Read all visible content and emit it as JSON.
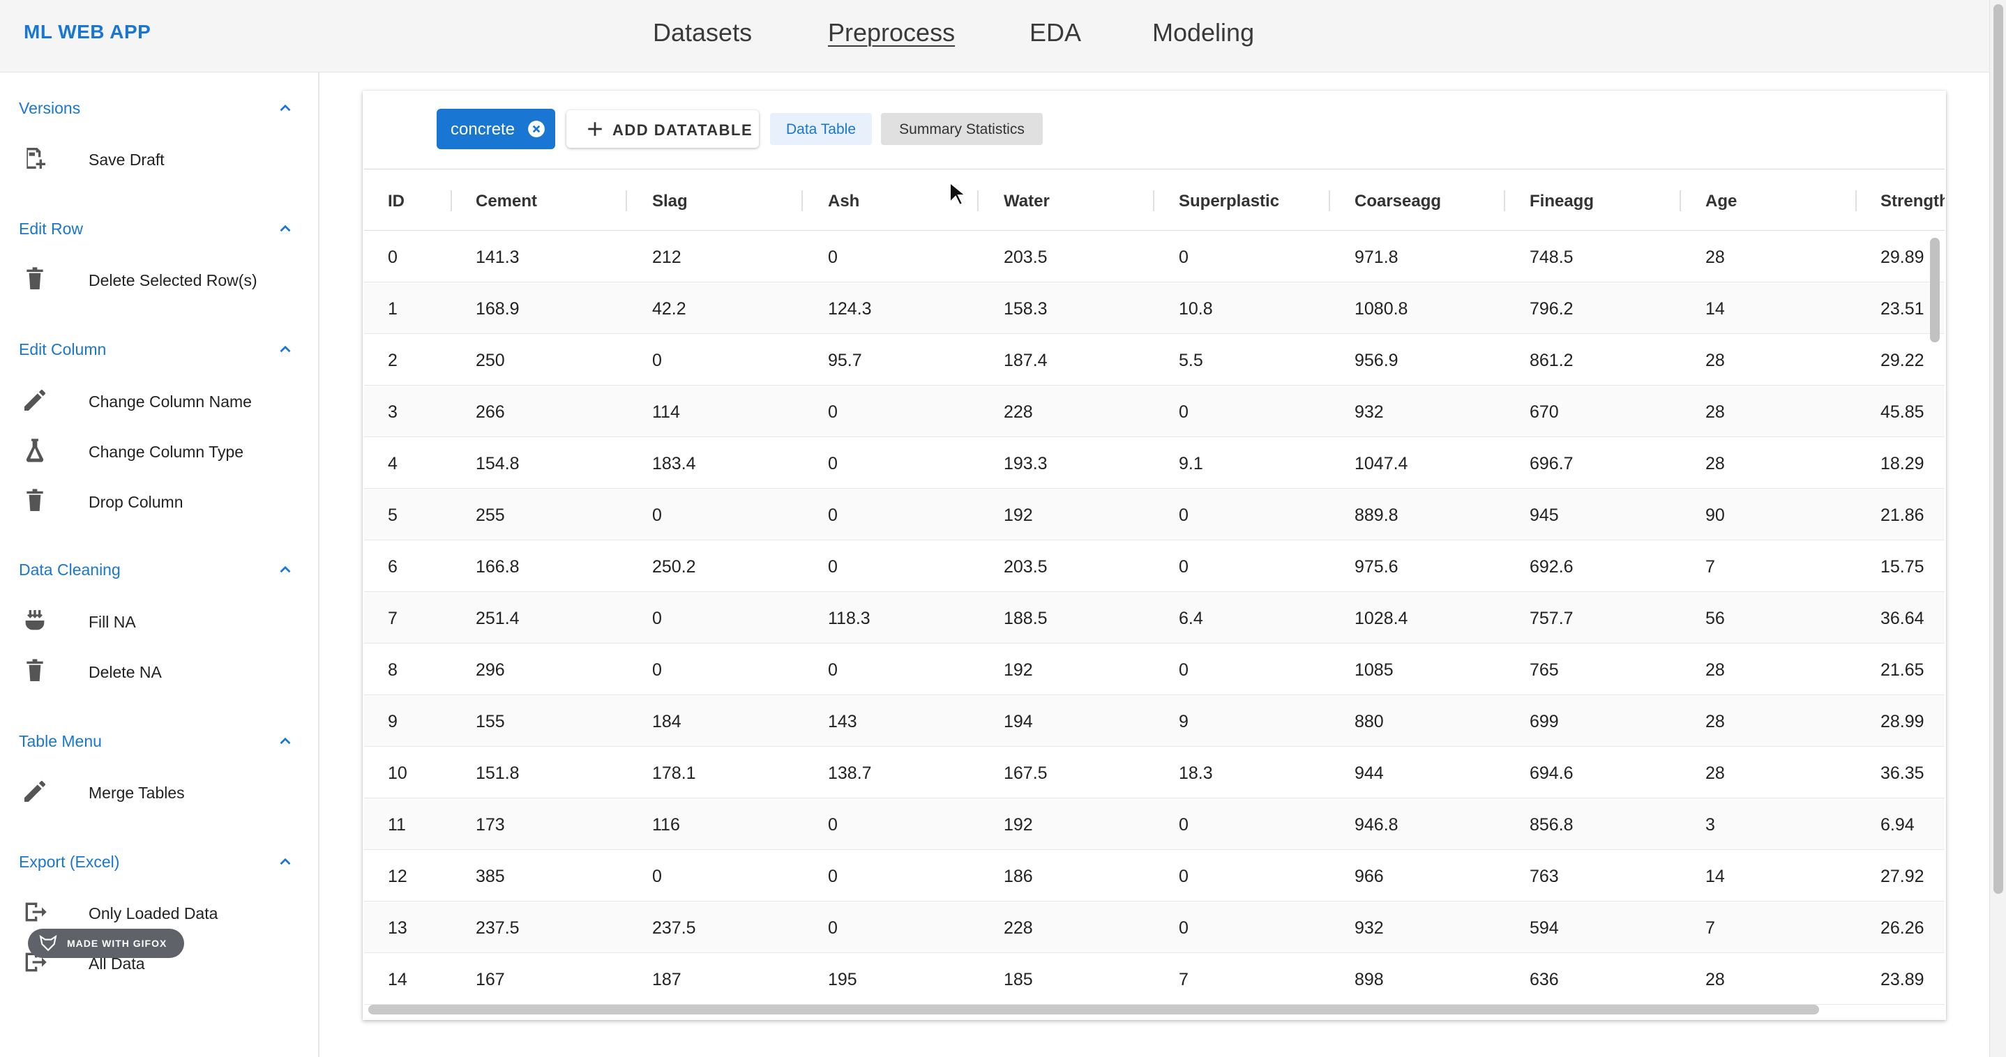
{
  "app": {
    "brand": "ML WEB APP"
  },
  "nav": {
    "datasets": "Datasets",
    "preprocess": "Preprocess",
    "eda": "EDA",
    "modeling": "Modeling"
  },
  "sidebar": {
    "versions": {
      "title": "Versions",
      "items": [
        "Save Draft"
      ]
    },
    "edit_row": {
      "title": "Edit Row",
      "items": [
        "Delete Selected Row(s)"
      ]
    },
    "edit_column": {
      "title": "Edit Column",
      "items": [
        "Change Column Name",
        "Change Column Type",
        "Drop Column"
      ]
    },
    "data_cleaning": {
      "title": "Data Cleaning",
      "items": [
        "Fill NA",
        "Delete NA"
      ]
    },
    "table_menu": {
      "title": "Table Menu",
      "items": [
        "Merge Tables"
      ]
    },
    "export": {
      "title": "Export (Excel)",
      "items": [
        "Only Loaded Data",
        "All Data"
      ]
    },
    "badge": "MADE WITH GIFOX"
  },
  "toolbar": {
    "chip_label": "concrete",
    "add_label": "ADD DATATABLE",
    "tab_data_table": "Data Table",
    "tab_summary": "Summary Statistics"
  },
  "table": {
    "columns": [
      "ID",
      "Cement",
      "Slag",
      "Ash",
      "Water",
      "Superplastic",
      "Coarseagg",
      "Fineagg",
      "Age",
      "Strength"
    ],
    "rows": [
      [
        "0",
        "141.3",
        "212",
        "0",
        "203.5",
        "0",
        "971.8",
        "748.5",
        "28",
        "29.89"
      ],
      [
        "1",
        "168.9",
        "42.2",
        "124.3",
        "158.3",
        "10.8",
        "1080.8",
        "796.2",
        "14",
        "23.51"
      ],
      [
        "2",
        "250",
        "0",
        "95.7",
        "187.4",
        "5.5",
        "956.9",
        "861.2",
        "28",
        "29.22"
      ],
      [
        "3",
        "266",
        "114",
        "0",
        "228",
        "0",
        "932",
        "670",
        "28",
        "45.85"
      ],
      [
        "4",
        "154.8",
        "183.4",
        "0",
        "193.3",
        "9.1",
        "1047.4",
        "696.7",
        "28",
        "18.29"
      ],
      [
        "5",
        "255",
        "0",
        "0",
        "192",
        "0",
        "889.8",
        "945",
        "90",
        "21.86"
      ],
      [
        "6",
        "166.8",
        "250.2",
        "0",
        "203.5",
        "0",
        "975.6",
        "692.6",
        "7",
        "15.75"
      ],
      [
        "7",
        "251.4",
        "0",
        "118.3",
        "188.5",
        "6.4",
        "1028.4",
        "757.7",
        "56",
        "36.64"
      ],
      [
        "8",
        "296",
        "0",
        "0",
        "192",
        "0",
        "1085",
        "765",
        "28",
        "21.65"
      ],
      [
        "9",
        "155",
        "184",
        "143",
        "194",
        "9",
        "880",
        "699",
        "28",
        "28.99"
      ],
      [
        "10",
        "151.8",
        "178.1",
        "138.7",
        "167.5",
        "18.3",
        "944",
        "694.6",
        "28",
        "36.35"
      ],
      [
        "11",
        "173",
        "116",
        "0",
        "192",
        "0",
        "946.8",
        "856.8",
        "3",
        "6.94"
      ],
      [
        "12",
        "385",
        "0",
        "0",
        "186",
        "0",
        "966",
        "763",
        "14",
        "27.92"
      ],
      [
        "13",
        "237.5",
        "237.5",
        "0",
        "228",
        "0",
        "932",
        "594",
        "7",
        "26.26"
      ],
      [
        "14",
        "167",
        "187",
        "195",
        "185",
        "7",
        "898",
        "636",
        "28",
        "23.89"
      ]
    ]
  },
  "colors": {
    "accent": "#1976d2",
    "topbar": "#f5f5f5",
    "badge": "#5f6369"
  }
}
